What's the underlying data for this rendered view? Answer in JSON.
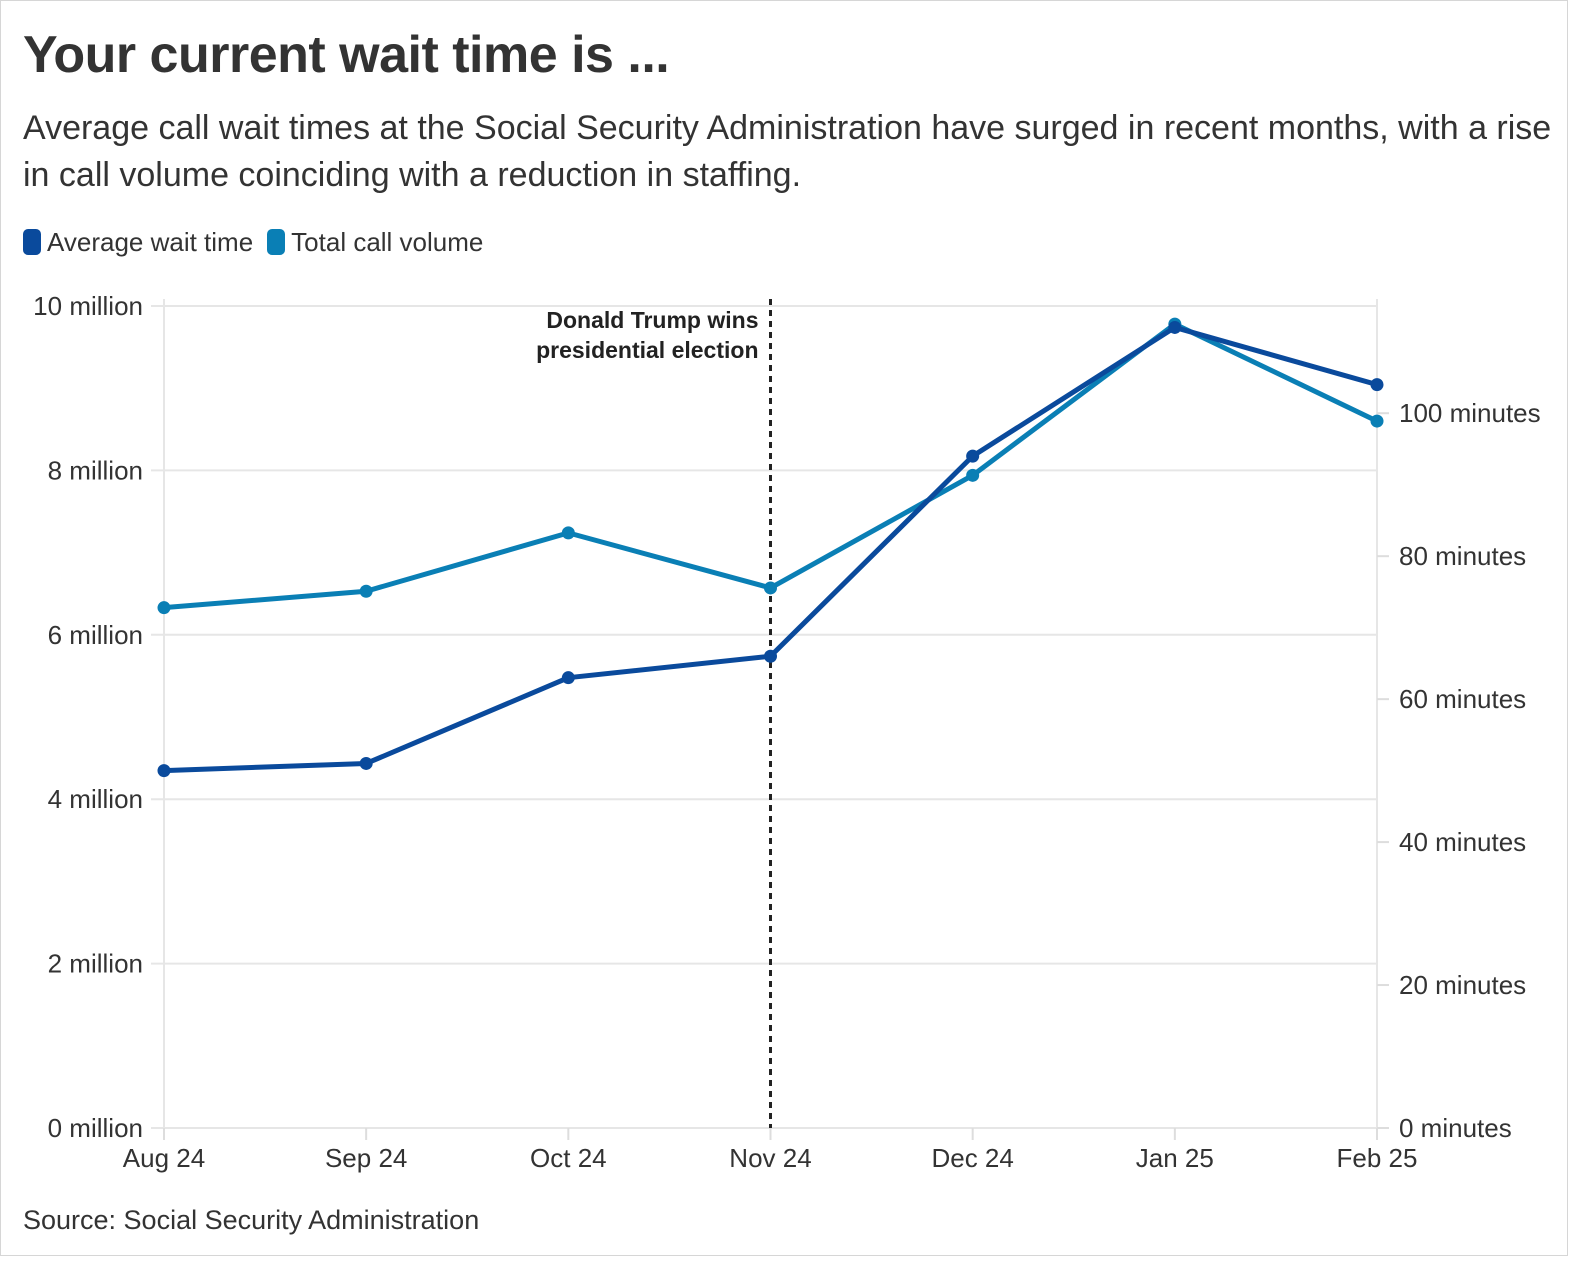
{
  "header": {
    "title": "Your current wait time is ...",
    "subtitle": "Average call wait times at the Social Security Administration have surged in recent months, with a rise in call volume coinciding with a reduction in staffing."
  },
  "legend": [
    {
      "label": "Average wait time",
      "color": "#0a4a9c"
    },
    {
      "label": "Total call volume",
      "color": "#0a7fb5"
    }
  ],
  "footer": {
    "source": "Source: Social Security Administration"
  },
  "chart_data": {
    "type": "line",
    "x": [
      "Aug 24",
      "Sep 24",
      "Oct 24",
      "Nov 24",
      "Dec 24",
      "Jan 25",
      "Feb 25"
    ],
    "series": [
      {
        "name": "Total call volume",
        "axis": "left",
        "unit": "million calls",
        "color": "#0a7fb5",
        "values": [
          6.33,
          6.53,
          7.24,
          6.57,
          7.94,
          9.78,
          8.6
        ]
      },
      {
        "name": "Average wait time",
        "axis": "right",
        "unit": "minutes",
        "color": "#0a4a9c",
        "values": [
          50,
          51,
          63,
          66,
          94,
          112,
          104
        ]
      }
    ],
    "y_left": {
      "ylim": [
        0,
        10
      ],
      "ticks": [
        0,
        2,
        4,
        6,
        8,
        10
      ],
      "tick_labels": [
        "0 million",
        "2 million",
        "4 million",
        "6 million",
        "8 million",
        "10 million"
      ]
    },
    "y_right": {
      "ylim": [
        0,
        115
      ],
      "ticks": [
        0,
        20,
        40,
        60,
        80,
        100
      ],
      "tick_labels": [
        "0 minutes",
        "20 minutes",
        "40 minutes",
        "60 minutes",
        "80 minutes",
        "100 minutes"
      ]
    },
    "annotations": [
      {
        "x": "Nov 24",
        "style": "dotted-vertical-line",
        "lines": [
          "Donald Trump wins",
          "presidential election"
        ]
      }
    ],
    "grid": true,
    "legend_position": "top-left"
  }
}
